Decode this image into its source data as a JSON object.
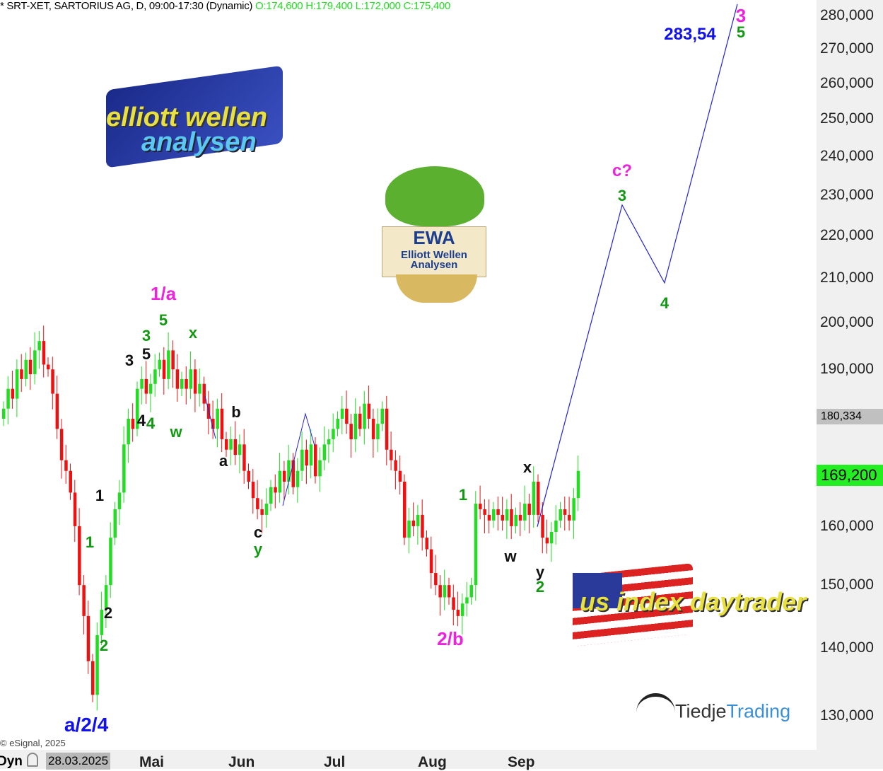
{
  "header": {
    "title": "* SRT-XET, SARTORIUS AG, D, 09:00-17:30 (Dynamic)",
    "ohlc": "O:174,600 H:179,400 L:172,000 C:175,400"
  },
  "footer": {
    "copyright": "© eSignal, 2025",
    "mode": "Dyn",
    "lock_icon": "lock-icon",
    "start_date": "28.03.2025"
  },
  "chart_data": {
    "type": "candlestick",
    "scale": "log",
    "ylim": [
      130,
      285
    ],
    "y_ticks": [
      "280,000",
      "270,000",
      "260,000",
      "250,000",
      "240,000",
      "230,000",
      "220,000",
      "210,000",
      "200,000",
      "190,000",
      "160,000",
      "150,000",
      "140,000",
      "130,000"
    ],
    "x_ticks": [
      "Mai",
      "Jun",
      "Jul",
      "Aug",
      "Sep"
    ],
    "closes": [
      182,
      186,
      184,
      190,
      188,
      192,
      189,
      194,
      196,
      191,
      190,
      185,
      178,
      172,
      170,
      166,
      160,
      150,
      145,
      138,
      133,
      142,
      146,
      150,
      158,
      163,
      166,
      175,
      180,
      178,
      186,
      188,
      185,
      187,
      190,
      192,
      188,
      194,
      190,
      186,
      188,
      186,
      190,
      185,
      187,
      183,
      180,
      178,
      182,
      176,
      174,
      176,
      173,
      175,
      170,
      168,
      165,
      163,
      162,
      164,
      167,
      166,
      170,
      168,
      172,
      167,
      170,
      174,
      171,
      175,
      169,
      172,
      175,
      176,
      178,
      180,
      182,
      179,
      176,
      181,
      178,
      183,
      180,
      176,
      179,
      182,
      174,
      172,
      170,
      168,
      158,
      161,
      160,
      162,
      158,
      156,
      152,
      150,
      148,
      150,
      148,
      146,
      145,
      147,
      148,
      150,
      164,
      163,
      162,
      161,
      163,
      162,
      161,
      163,
      160,
      162,
      161,
      164,
      162,
      168,
      162,
      158,
      157,
      159,
      161,
      163,
      162,
      161,
      165,
      170
    ],
    "projection": [
      {
        "label": "2",
        "price": 159.9
      },
      {
        "label": "3",
        "price": 227.5
      },
      {
        "label": "4",
        "price": 208.9
      },
      {
        "label": "5",
        "price": 283.54
      }
    ],
    "price_markers": [
      {
        "value": "180,334",
        "color": "#c0c0c0"
      },
      {
        "value": "169,200",
        "color": "#22ee22"
      }
    ],
    "wave_labels": [
      "1/a",
      "5",
      "3",
      "x",
      "3",
      "5",
      "4",
      "4",
      "w",
      "b",
      "a",
      "c",
      "y",
      "1",
      "1",
      "2",
      "2",
      "a/2/4",
      "2/b",
      "1",
      "x",
      "w",
      "y",
      "2",
      "c?",
      "3",
      "4",
      "283,54",
      "3",
      "5"
    ],
    "colors": {
      "up": "#22dd22",
      "down": "#ee1111",
      "projection": "#2222dd"
    }
  },
  "logos": {
    "ewa_top": "elliott wellen analysen",
    "ewa_mascot_1": "EWA",
    "ewa_mascot_2": "Elliott Wellen",
    "ewa_mascot_3": "Analysen",
    "us": "us index daytrader",
    "tiedje_1": "Tiedje",
    "tiedje_2": "Trading"
  }
}
